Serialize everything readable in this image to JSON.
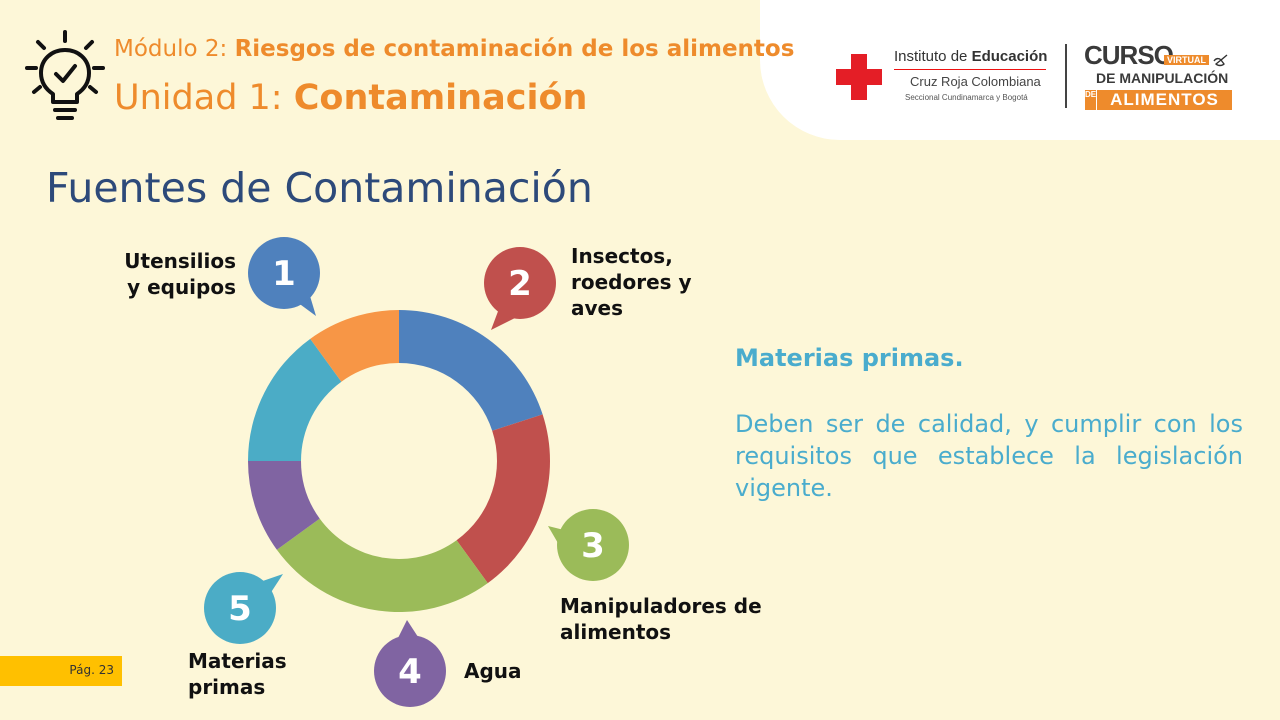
{
  "header": {
    "module_prefix": "Módulo 2: ",
    "module_title": "Riesgos de contaminación de los alimentos",
    "unit_prefix": "Unidad 1: ",
    "unit_title": "Contaminación",
    "icon": "lightbulb-check-icon"
  },
  "logos": {
    "institute_prefix": "Instituto de ",
    "institute_bold": "Educación",
    "institute_line2": "Cruz Roja Colombiana",
    "institute_line3": "Seccional Cundinamarca y Bogotá",
    "curso": "CURSO",
    "virtual": "VIRTUAL",
    "de_manipulacion": "DE MANIPULACIÓN",
    "de_vertical": "DE",
    "alimentos": "ALIMENTOS",
    "cross_color": "#e41e26",
    "brand_orange": "#ee8b2c"
  },
  "section_title": "Fuentes de Contaminación",
  "chart_data": {
    "type": "pie",
    "subtype": "donut",
    "categories": [
      "Utensilios y equipos",
      "Insectos, roedores y aves",
      "Manipuladores de alimentos",
      "Agua",
      "Materias primas",
      ""
    ],
    "values": [
      20,
      20,
      25,
      10,
      15,
      10
    ],
    "colors": [
      "#4f81bd",
      "#c0504d",
      "#9bbb59",
      "#8064a2",
      "#4bacc6",
      "#f79646"
    ],
    "badge_numbers": [
      "1",
      "2",
      "3",
      "4",
      "5"
    ],
    "badge_colors": [
      "#4f81bd",
      "#c0504d",
      "#9bbb59",
      "#8064a2",
      "#4bacc6"
    ]
  },
  "labels": {
    "item1": "Utensilios\ny equipos",
    "item2": "Insectos,\nroedores y\naves",
    "item3": "Manipuladores de\nalimentos",
    "item4": "Agua",
    "item5": "Materias\nprimas"
  },
  "description": {
    "title": "Materias primas.",
    "body": "Deben ser de calidad, y cumplir con los requisitos que establece la legislación vigente."
  },
  "footer": {
    "page": "Pág. 23",
    "tag_color": "#ffc000"
  }
}
